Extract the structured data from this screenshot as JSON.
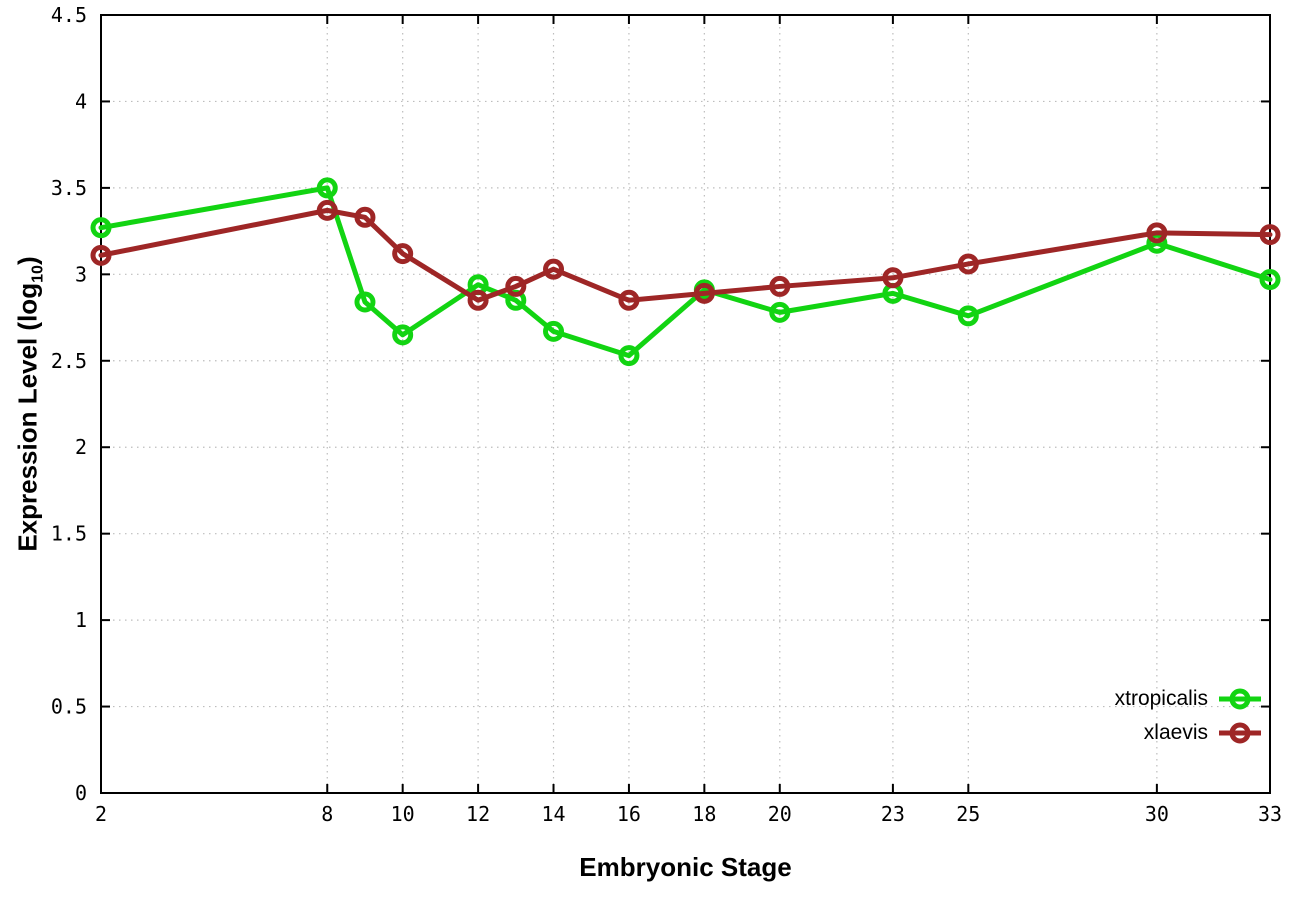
{
  "colors": {
    "background": "#ffffff",
    "border": "#000000",
    "grid": "#bdbdbd",
    "text": "#000000",
    "xtropicalis": "#12d412",
    "xlaevis": "#9e2626"
  },
  "axes": {
    "y_title": {
      "prefix": "Expression Level (log",
      "sub": "10",
      "suffix": ")"
    },
    "x_title": "Embryonic Stage"
  },
  "legend": {
    "items": [
      {
        "label": "xtropicalis",
        "color": "#12d412"
      },
      {
        "label": "xlaevis",
        "color": "#9e2626"
      }
    ]
  },
  "chart_data": {
    "type": "line",
    "title": "",
    "xlabel": "Embryonic Stage",
    "ylabel": "Expression Level (log10)",
    "xlim": [
      2,
      33
    ],
    "ylim": [
      0,
      4.5
    ],
    "xticks": [
      2,
      8,
      10,
      12,
      14,
      16,
      18,
      20,
      23,
      25,
      30,
      33
    ],
    "xtick_labels": [
      "2",
      "8",
      "10",
      "12",
      "14",
      "16",
      "18",
      "20",
      "23",
      "25",
      "30",
      "33"
    ],
    "yticks": [
      0,
      0.5,
      1,
      1.5,
      2,
      2.5,
      3,
      3.5,
      4,
      4.5
    ],
    "ytick_labels": [
      "0",
      "0.5",
      "1",
      "1.5",
      "2",
      "2.5",
      "3",
      "3.5",
      "4",
      "4.5"
    ],
    "grid": true,
    "grid_style": "dotted",
    "legend_position": "bottom-right-inside",
    "x": [
      2,
      8,
      9,
      10,
      12,
      13,
      14,
      16,
      18,
      20,
      23,
      25,
      30,
      33
    ],
    "series": [
      {
        "name": "xtropicalis",
        "color": "#12d412",
        "marker": "open-circle",
        "values": [
          3.27,
          3.5,
          2.84,
          2.65,
          2.94,
          2.85,
          2.67,
          2.53,
          2.91,
          2.78,
          2.89,
          2.76,
          3.18,
          2.97
        ]
      },
      {
        "name": "xlaevis",
        "color": "#9e2626",
        "marker": "open-circle",
        "values": [
          3.11,
          3.37,
          3.33,
          3.12,
          2.85,
          2.93,
          3.03,
          2.85,
          2.89,
          2.93,
          2.98,
          3.06,
          3.24,
          3.23
        ]
      }
    ]
  }
}
